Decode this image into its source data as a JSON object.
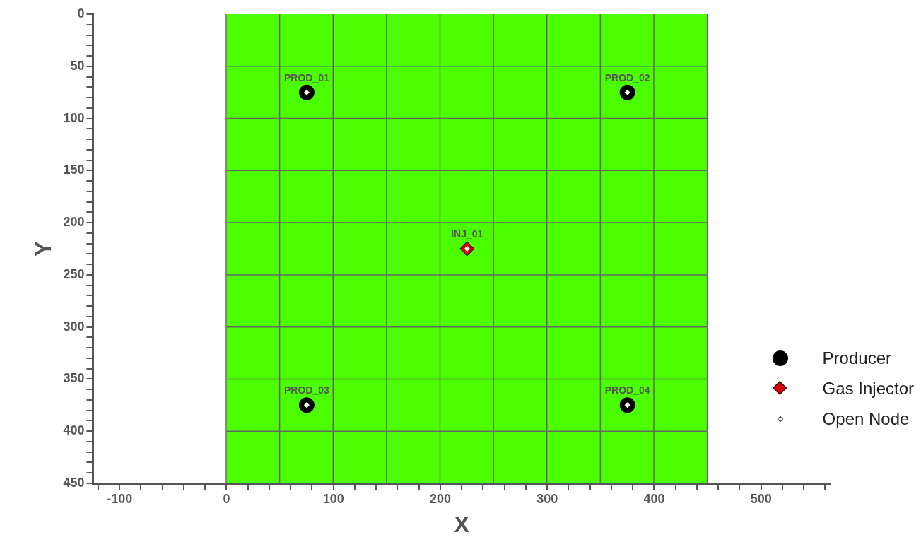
{
  "chart_data": {
    "type": "scatter",
    "xlabel": "X",
    "ylabel": "Y",
    "xlim": [
      -125,
      565
    ],
    "ylim": [
      450,
      0
    ],
    "xticks": [
      {
        "value": -120,
        "label": null
      },
      {
        "value": -100,
        "label": "-100"
      },
      {
        "value": -80,
        "label": null
      },
      {
        "value": -60,
        "label": null
      },
      {
        "value": -40,
        "label": null
      },
      {
        "value": -20,
        "label": null
      },
      0,
      {
        "value": 20,
        "label": null
      },
      {
        "value": 40,
        "label": null
      },
      {
        "value": 60,
        "label": null
      },
      {
        "value": 80,
        "label": null
      },
      100,
      {
        "value": 120,
        "label": null
      },
      {
        "value": 140,
        "label": null
      },
      {
        "value": 160,
        "label": null
      },
      {
        "value": 180,
        "label": null
      },
      200,
      {
        "value": 220,
        "label": null
      },
      {
        "value": 240,
        "label": null
      },
      {
        "value": 260,
        "label": null
      },
      {
        "value": 280,
        "label": null
      },
      300,
      {
        "value": 320,
        "label": null
      },
      {
        "value": 340,
        "label": null
      },
      {
        "value": 360,
        "label": null
      },
      {
        "value": 380,
        "label": null
      },
      400,
      {
        "value": 420,
        "label": null
      },
      {
        "value": 440,
        "label": null
      },
      {
        "value": 460,
        "label": null
      },
      {
        "value": 480,
        "label": null
      },
      500,
      {
        "value": 520,
        "label": null
      },
      {
        "value": 540,
        "label": null
      },
      {
        "value": 560,
        "label": null
      }
    ],
    "yticks": [
      0,
      {
        "value": 10,
        "label": null
      },
      {
        "value": 20,
        "label": null
      },
      {
        "value": 30,
        "label": null
      },
      {
        "value": 40,
        "label": null
      },
      50,
      {
        "value": 60,
        "label": null
      },
      {
        "value": 70,
        "label": null
      },
      {
        "value": 80,
        "label": null
      },
      {
        "value": 90,
        "label": null
      },
      100,
      {
        "value": 110,
        "label": null
      },
      {
        "value": 120,
        "label": null
      },
      {
        "value": 130,
        "label": null
      },
      {
        "value": 140,
        "label": null
      },
      150,
      {
        "value": 160,
        "label": null
      },
      {
        "value": 170,
        "label": null
      },
      {
        "value": 180,
        "label": null
      },
      {
        "value": 190,
        "label": null
      },
      200,
      {
        "value": 210,
        "label": null
      },
      {
        "value": 220,
        "label": null
      },
      {
        "value": 230,
        "label": null
      },
      {
        "value": 240,
        "label": null
      },
      250,
      {
        "value": 260,
        "label": null
      },
      {
        "value": 270,
        "label": null
      },
      {
        "value": 280,
        "label": null
      },
      {
        "value": 290,
        "label": null
      },
      300,
      {
        "value": 310,
        "label": null
      },
      {
        "value": 320,
        "label": null
      },
      {
        "value": 330,
        "label": null
      },
      {
        "value": 340,
        "label": null
      },
      350,
      {
        "value": 360,
        "label": null
      },
      {
        "value": 370,
        "label": null
      },
      {
        "value": 380,
        "label": null
      },
      {
        "value": 390,
        "label": null
      },
      400,
      {
        "value": 410,
        "label": null
      },
      {
        "value": 420,
        "label": null
      },
      {
        "value": 430,
        "label": null
      },
      {
        "value": 440,
        "label": null
      },
      450
    ],
    "grid": true,
    "legend": "bottom right",
    "bands": [
      {
        "axis": "x",
        "from": 0,
        "to": 450,
        "color": "#4cff00"
      }
    ],
    "ref_lines": [
      {
        "axis": "y",
        "value": 50,
        "color": "#666666"
      },
      {
        "axis": "y",
        "value": 100,
        "color": "#666666"
      },
      {
        "axis": "y",
        "value": 150,
        "color": "#666666"
      },
      {
        "axis": "y",
        "value": 200,
        "color": "#666666"
      },
      {
        "axis": "y",
        "value": 250,
        "color": "#666666"
      },
      {
        "axis": "y",
        "value": 300,
        "color": "#666666"
      },
      {
        "axis": "y",
        "value": 350,
        "color": "#666666"
      },
      {
        "axis": "y",
        "value": 400,
        "color": "#666666"
      }
    ],
    "series": [
      {
        "name": "Producer",
        "color": "#000000",
        "marker": "circle",
        "x": [
          75,
          375,
          75,
          375
        ],
        "values": [
          75,
          75,
          375,
          375
        ]
      },
      {
        "name": "Gas Injector",
        "color": "#d40000",
        "marker": "diamond",
        "x": [
          225
        ],
        "values": [
          225
        ]
      },
      {
        "name": "Open Node",
        "color": "#ffffff",
        "marker": "diamond",
        "x": [
          75,
          375,
          75,
          375,
          225
        ],
        "values": [
          75,
          75,
          375,
          375,
          225
        ]
      }
    ],
    "annotations": [
      {
        "text": "PROD_01",
        "x": 75,
        "y": 75
      },
      {
        "text": "PROD_02",
        "x": 375,
        "y": 75
      },
      {
        "text": "PROD_03",
        "x": 75,
        "y": 375
      },
      {
        "text": "PROD_04",
        "x": 375,
        "y": 375
      },
      {
        "text": "INJ_01",
        "x": 225,
        "y": 225
      }
    ]
  }
}
